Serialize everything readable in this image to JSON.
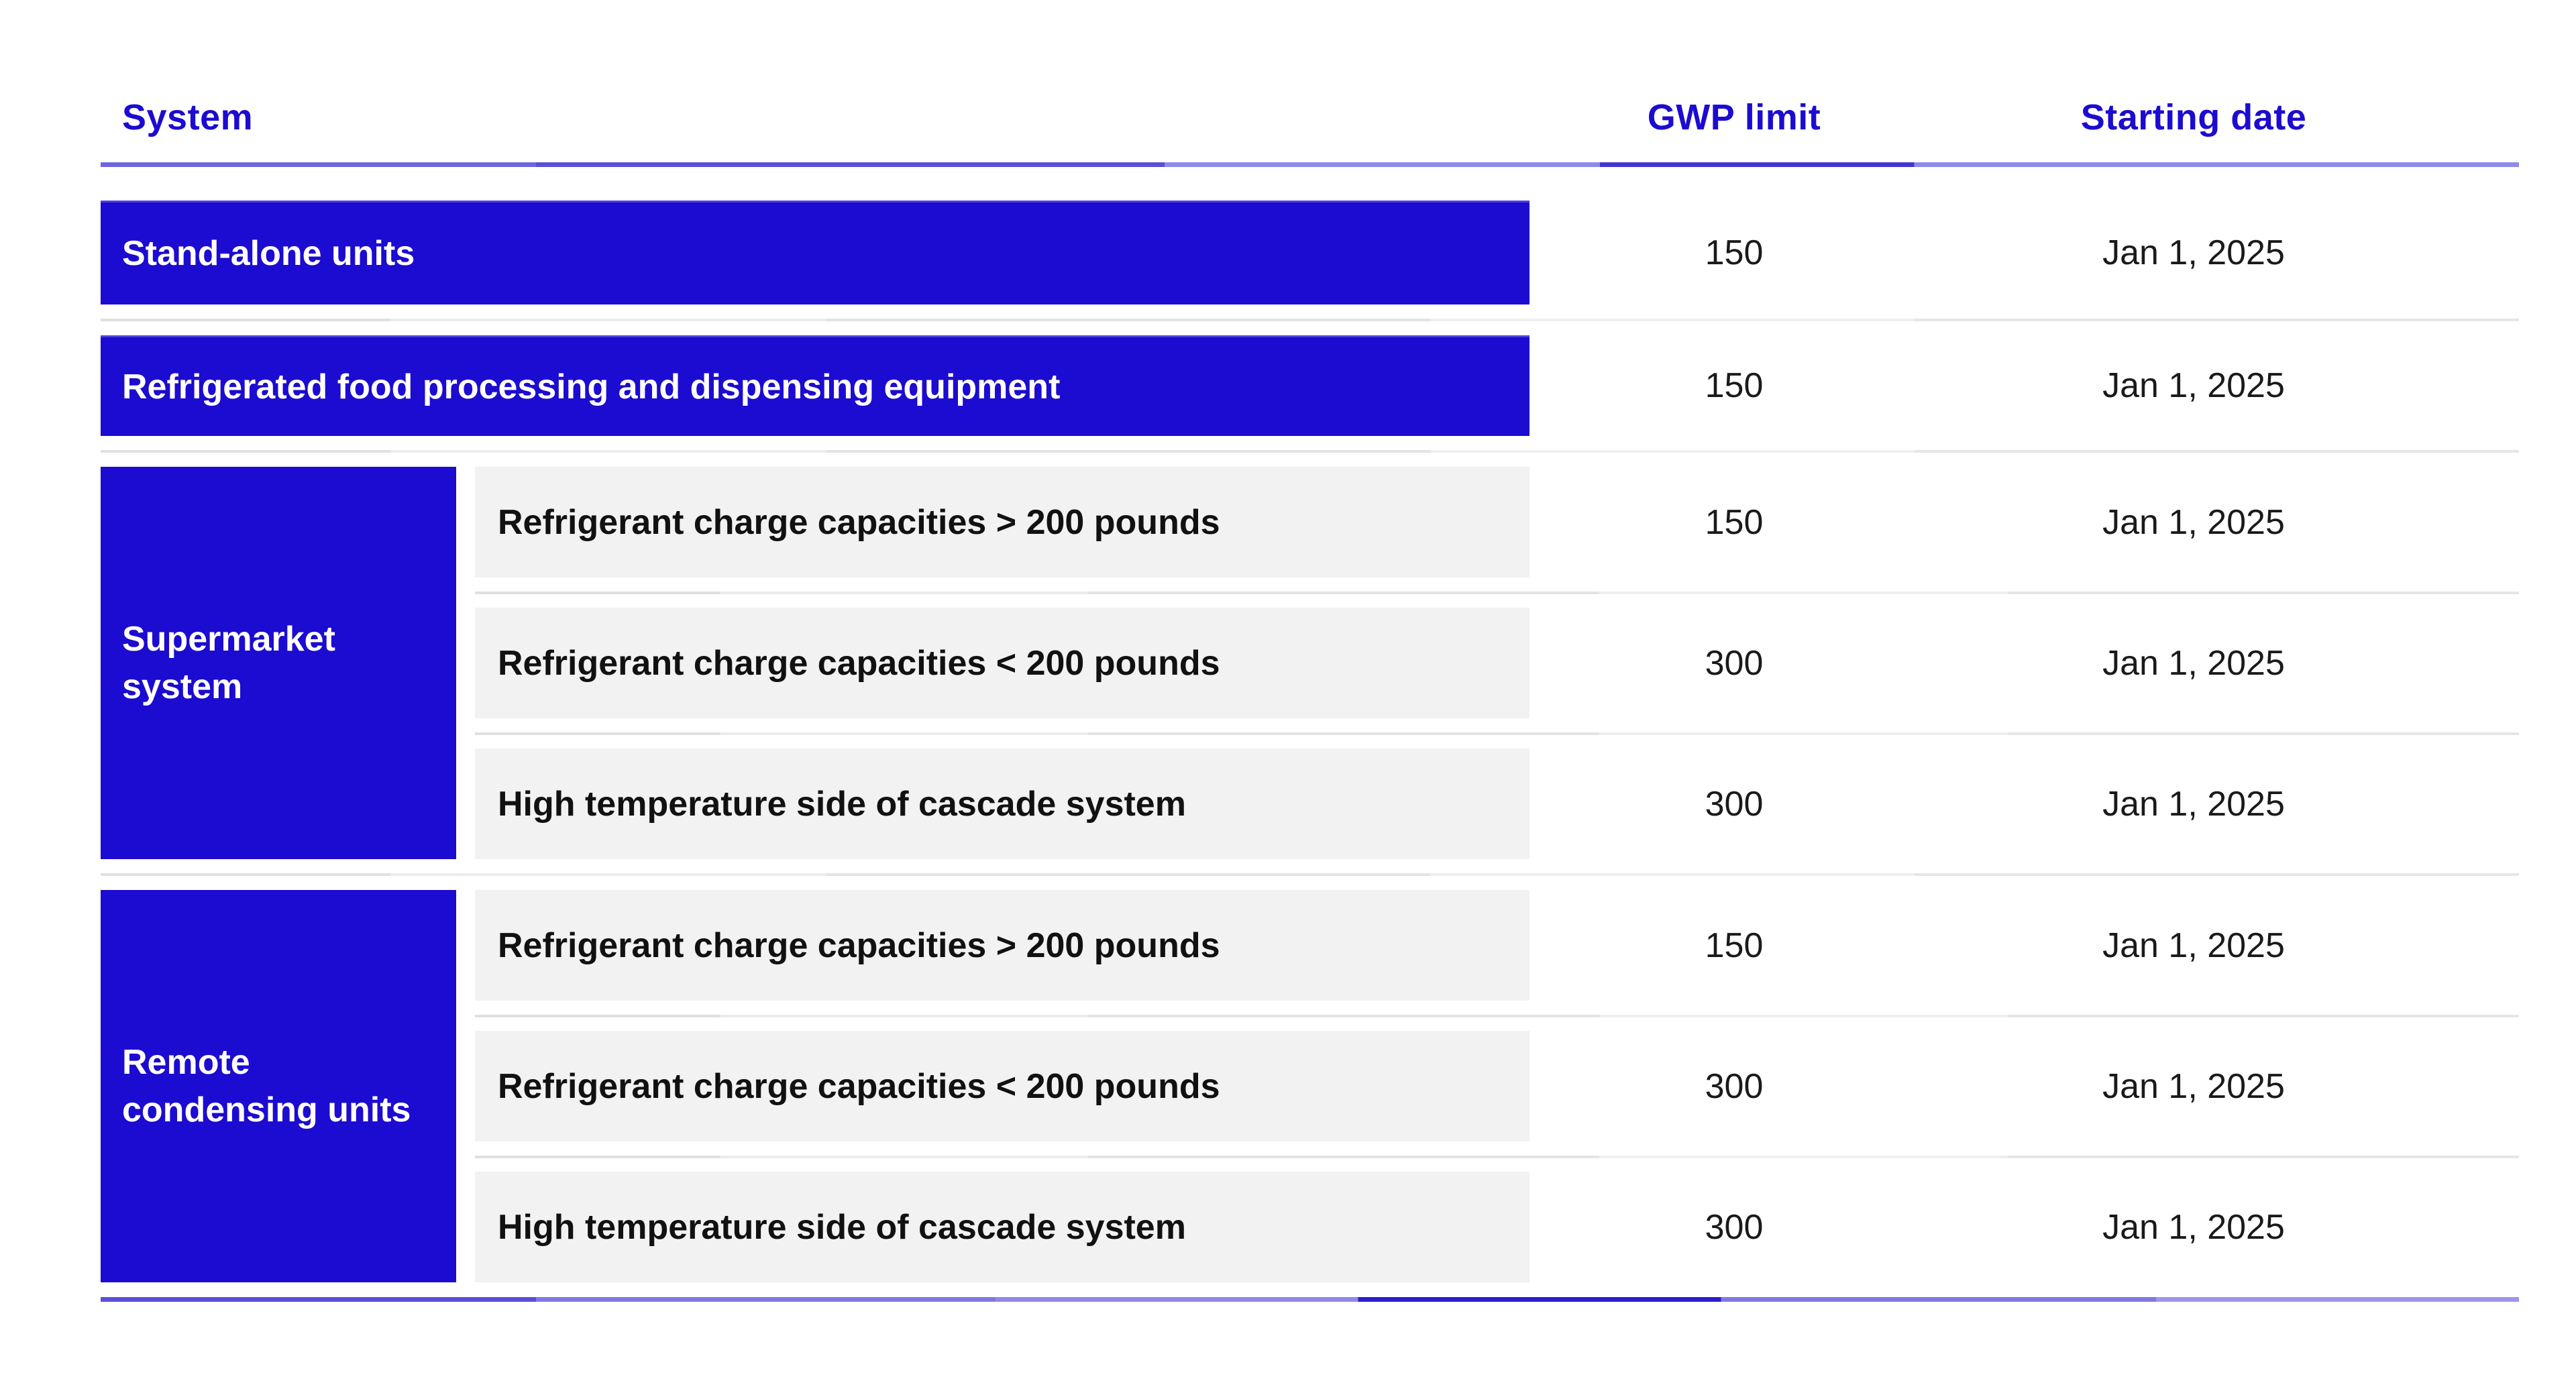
{
  "colors": {
    "accent_blue": "#1C0BD0",
    "bar_text": "#FFFFFF",
    "value_text": "#1A1A1A",
    "subrow_background": "#F2F2F2",
    "separator_gray": "#E3E3E3"
  },
  "table": {
    "headers": {
      "system": "System",
      "gwp": "GWP limit",
      "date": "Starting date"
    },
    "rows": [
      {
        "type": "simple",
        "system": "Stand-alone units",
        "gwp": "150",
        "date": "Jan 1, 2025"
      },
      {
        "type": "simple",
        "system": "Refrigerated food processing and dispensing equipment",
        "gwp": "150",
        "date": "Jan 1, 2025"
      },
      {
        "type": "group",
        "system": "Supermarket\nsystem",
        "subrows": [
          {
            "label": "Refrigerant charge capacities > 200 pounds",
            "gwp": "150",
            "date": "Jan 1, 2025"
          },
          {
            "label": "Refrigerant charge capacities < 200 pounds",
            "gwp": "300",
            "date": "Jan 1, 2025"
          },
          {
            "label": "High temperature side of cascade system",
            "gwp": "300",
            "date": "Jan 1, 2025"
          }
        ]
      },
      {
        "type": "group",
        "system": "Remote\ncondensing units",
        "subrows": [
          {
            "label": "Refrigerant charge capacities > 200 pounds",
            "gwp": "150",
            "date": "Jan 1, 2025"
          },
          {
            "label": "Refrigerant charge capacities < 200 pounds",
            "gwp": "300",
            "date": "Jan 1, 2025"
          },
          {
            "label": "High temperature side of cascade system",
            "gwp": "300",
            "date": "Jan 1, 2025"
          }
        ]
      }
    ]
  }
}
